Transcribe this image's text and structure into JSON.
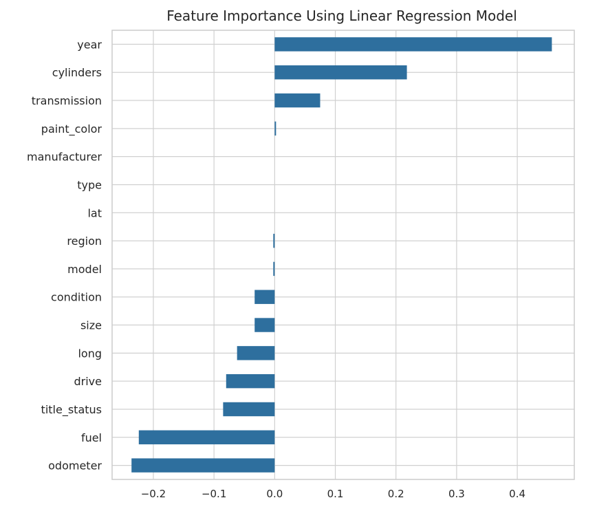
{
  "chart_data": {
    "type": "bar",
    "orientation": "horizontal",
    "title": "Feature Importance Using Linear Regression Model",
    "xlabel": "",
    "ylabel": "",
    "categories": [
      "year",
      "cylinders",
      "transmission",
      "paint_color",
      "manufacturer",
      "type",
      "lat",
      "region",
      "model",
      "condition",
      "size",
      "long",
      "drive",
      "title_status",
      "fuel",
      "odometer"
    ],
    "values": [
      0.457,
      0.218,
      0.075,
      0.002,
      0.0,
      0.0,
      0.0,
      -0.002,
      -0.002,
      -0.033,
      -0.033,
      -0.062,
      -0.08,
      -0.085,
      -0.224,
      -0.236
    ],
    "xlim": [
      -0.268,
      0.494
    ],
    "xticks": [
      -0.2,
      -0.1,
      0.0,
      0.1,
      0.2,
      0.3,
      0.4
    ],
    "xtick_labels": [
      "−0.2",
      "−0.1",
      "0.0",
      "0.1",
      "0.2",
      "0.3",
      "0.4"
    ],
    "grid": true,
    "bar_color": "#2e6f9e",
    "grid_color": "#d0d0d0",
    "frame_color": "#cccccc"
  }
}
